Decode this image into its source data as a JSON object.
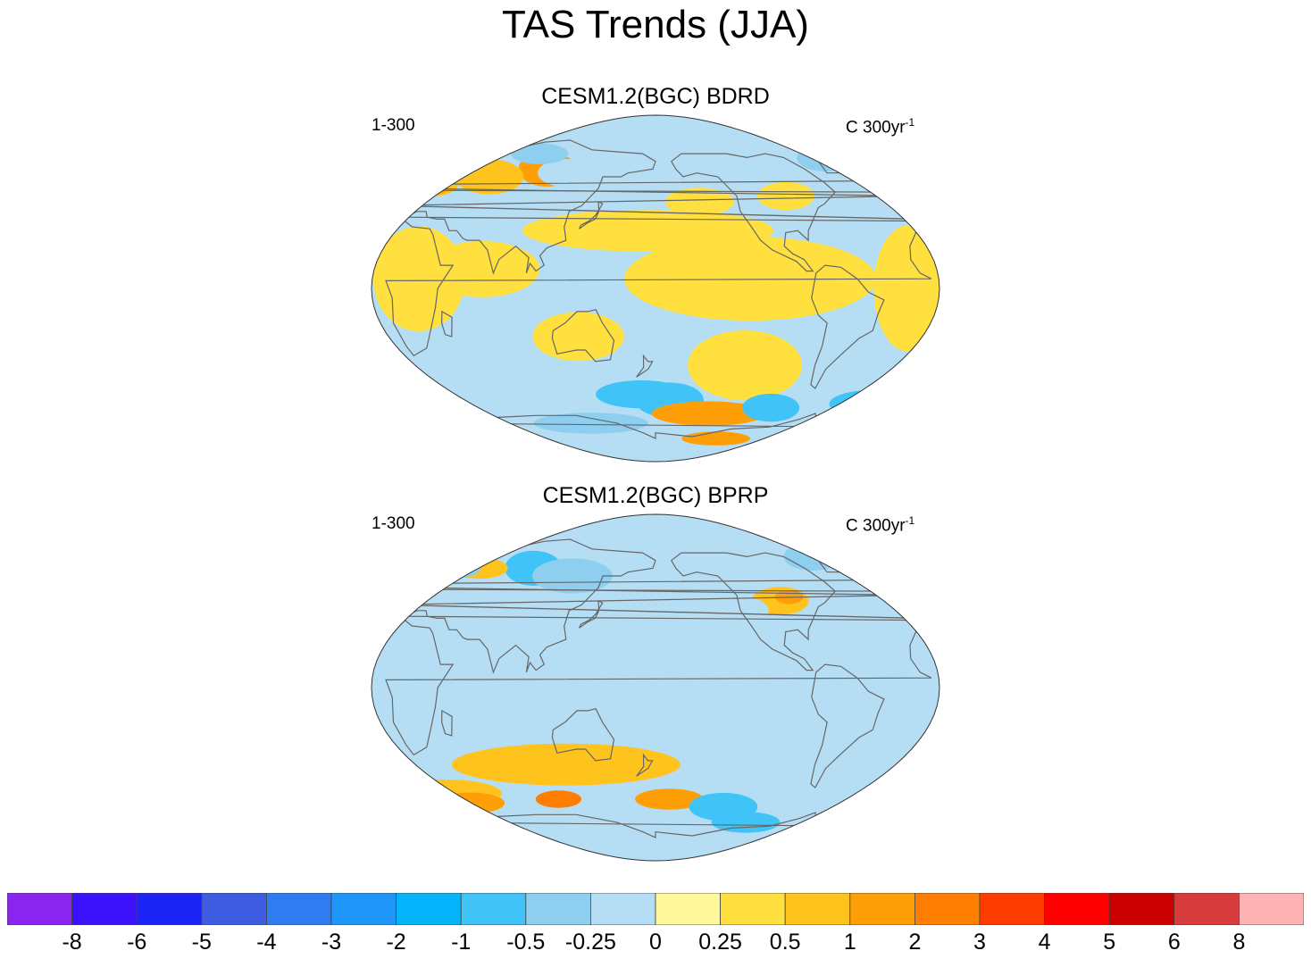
{
  "title": "TAS Trends (JJA)",
  "panels": [
    {
      "title": "CESM1.2(BGC) BDRD",
      "left_label": "1-300",
      "right_label_main": "C 300yr",
      "right_label_sup": "-1",
      "blobs": [
        {
          "lon": 100,
          "lat": 62,
          "rx": 0.05,
          "ry": 0.05,
          "level": 13
        },
        {
          "lon": 60,
          "lat": 58,
          "rx": 0.06,
          "ry": 0.05,
          "level": 12
        },
        {
          "lon": 115,
          "lat": 60,
          "rx": 0.05,
          "ry": 0.04,
          "level": 9
        },
        {
          "lon": 90,
          "lat": 70,
          "rx": 0.05,
          "ry": 0.03,
          "level": 8
        },
        {
          "lon": 20,
          "lat": 55,
          "rx": 0.05,
          "ry": 0.04,
          "level": 12
        },
        {
          "lon": 22,
          "lat": 52,
          "rx": 0.03,
          "ry": 0.02,
          "level": 13
        },
        {
          "lon": -50,
          "lat": 68,
          "rx": 0.05,
          "ry": 0.04,
          "level": 8
        },
        {
          "lon": 175,
          "lat": 30,
          "rx": 0.22,
          "ry": 0.06,
          "level": 11
        },
        {
          "lon": -150,
          "lat": 45,
          "rx": 0.06,
          "ry": 0.04,
          "level": 11
        },
        {
          "lon": -90,
          "lat": 48,
          "rx": 0.05,
          "ry": 0.04,
          "level": 11
        },
        {
          "lon": -120,
          "lat": 5,
          "rx": 0.22,
          "ry": 0.12,
          "level": 11
        },
        {
          "lon": -120,
          "lat": -40,
          "rx": 0.1,
          "ry": 0.1,
          "level": 11
        },
        {
          "lon": 30,
          "lat": 5,
          "rx": 0.08,
          "ry": 0.15,
          "level": 11
        },
        {
          "lon": 70,
          "lat": 10,
          "rx": 0.1,
          "ry": 0.08,
          "level": 11
        },
        {
          "lon": -20,
          "lat": 0,
          "rx": 0.06,
          "ry": 0.18,
          "level": 11
        },
        {
          "lon": 130,
          "lat": -25,
          "rx": 0.08,
          "ry": 0.07,
          "level": 11
        },
        {
          "lon": 170,
          "lat": -55,
          "rx": 0.08,
          "ry": 0.04,
          "level": 7
        },
        {
          "lon": -170,
          "lat": -58,
          "rx": 0.06,
          "ry": 0.05,
          "level": 7
        },
        {
          "lon": -140,
          "lat": -65,
          "rx": 0.1,
          "ry": 0.035,
          "level": 13
        },
        {
          "lon": -95,
          "lat": -62,
          "rx": 0.05,
          "ry": 0.04,
          "level": 7
        },
        {
          "lon": -20,
          "lat": -60,
          "rx": 0.08,
          "ry": 0.04,
          "level": 7
        },
        {
          "lon": 20,
          "lat": -65,
          "rx": 0.04,
          "ry": 0.025,
          "level": 13
        },
        {
          "lon": -130,
          "lat": -78,
          "rx": 0.06,
          "ry": 0.02,
          "level": 13
        },
        {
          "lon": 130,
          "lat": -70,
          "rx": 0.1,
          "ry": 0.03,
          "level": 8
        },
        {
          "lon": 0,
          "lat": -40,
          "rx": 0.03,
          "ry": 0.02,
          "level": 12
        }
      ]
    },
    {
      "title": "CESM1.2(BGC) BPRP",
      "left_label": "1-300",
      "right_label_main": "C 300yr",
      "right_label_sup": "-1",
      "blobs": [
        {
          "lon": 0,
          "lat": 0,
          "rx": 0.55,
          "ry": 0.22,
          "level": 9
        },
        {
          "lon": 90,
          "lat": 62,
          "rx": 0.05,
          "ry": 0.05,
          "level": 7
        },
        {
          "lon": 120,
          "lat": 58,
          "rx": 0.07,
          "ry": 0.05,
          "level": 8
        },
        {
          "lon": 50,
          "lat": 62,
          "rx": 0.05,
          "ry": 0.03,
          "level": 12
        },
        {
          "lon": 20,
          "lat": 60,
          "rx": 0.04,
          "ry": 0.03,
          "level": 12
        },
        {
          "lon": -60,
          "lat": 68,
          "rx": 0.05,
          "ry": 0.04,
          "level": 8
        },
        {
          "lon": -95,
          "lat": 45,
          "rx": 0.05,
          "ry": 0.04,
          "level": 12
        },
        {
          "lon": -88,
          "lat": 47,
          "rx": 0.025,
          "ry": 0.02,
          "level": 13
        },
        {
          "lon": 30,
          "lat": 62,
          "rx": 0.05,
          "ry": 0.03,
          "level": 8
        },
        {
          "lon": -150,
          "lat": 40,
          "rx": 0.12,
          "ry": 0.06,
          "level": 9
        },
        {
          "lon": -130,
          "lat": -10,
          "rx": 0.12,
          "ry": 0.07,
          "level": 9
        },
        {
          "lon": 20,
          "lat": -10,
          "rx": 0.05,
          "ry": 0.05,
          "level": 9
        },
        {
          "lon": 120,
          "lat": -40,
          "rx": 0.2,
          "ry": 0.06,
          "level": 12
        },
        {
          "lon": 30,
          "lat": -55,
          "rx": 0.1,
          "ry": 0.04,
          "level": 12
        },
        {
          "lon": 45,
          "lat": -60,
          "rx": 0.06,
          "ry": 0.03,
          "level": 13
        },
        {
          "lon": 110,
          "lat": -58,
          "rx": 0.04,
          "ry": 0.025,
          "level": 14
        },
        {
          "lon": -170,
          "lat": -58,
          "rx": 0.06,
          "ry": 0.03,
          "level": 13
        },
        {
          "lon": -130,
          "lat": -62,
          "rx": 0.06,
          "ry": 0.04,
          "level": 7
        },
        {
          "lon": -110,
          "lat": -70,
          "rx": 0.06,
          "ry": 0.03,
          "level": 7
        },
        {
          "lon": 0,
          "lat": -70,
          "rx": 0.08,
          "ry": 0.025,
          "level": 12
        }
      ]
    }
  ],
  "colorbar": {
    "colors": [
      "#8a25f0",
      "#3b10fb",
      "#1c24f5",
      "#3e5ce2",
      "#2e7cf0",
      "#1e96fa",
      "#04b4fb",
      "#40c4f8",
      "#8ecff0",
      "#b5def4",
      "#fff79c",
      "#ffe03f",
      "#ffc31e",
      "#ff9f08",
      "#ff7d00",
      "#ff3c00",
      "#ff0000",
      "#cc0000",
      "#d73b3b",
      "#feb4b4"
    ],
    "ticks": [
      "-8",
      "-6",
      "-5",
      "-4",
      "-3",
      "-2",
      "-1",
      "-0.5",
      "-0.25",
      "0",
      "0.25",
      "0.5",
      "1",
      "2",
      "3",
      "4",
      "5",
      "6",
      "8"
    ]
  }
}
